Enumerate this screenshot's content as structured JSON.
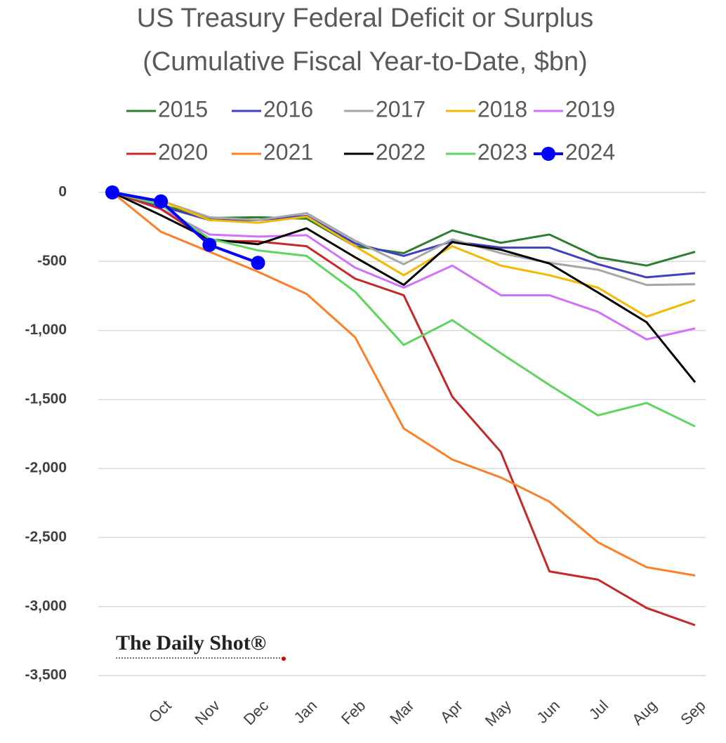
{
  "chart_data": {
    "type": "line",
    "title": "US Treasury Federal Deficit or Surplus",
    "subtitle": "(Cumulative Fiscal Year-to-Date, $bn)",
    "watermark": "The Daily Shot®",
    "categories": [
      null,
      "Oct",
      "Nov",
      "Dec",
      "Jan",
      "Feb",
      "Mar",
      "Apr",
      "May",
      "Jun",
      "Jul",
      "Aug",
      "Sep"
    ],
    "ylim": [
      -3500,
      0
    ],
    "yticks": [
      {
        "value": -3500,
        "label": "-3,500"
      },
      {
        "value": -3000,
        "label": "-3,000"
      },
      {
        "value": -2500,
        "label": "-2,500"
      },
      {
        "value": -2000,
        "label": "-2,000"
      },
      {
        "value": -1500,
        "label": "-1,500"
      },
      {
        "value": -1000,
        "label": "-1,000"
      },
      -500,
      0
    ],
    "grid": true,
    "series": [
      {
        "name": "2015",
        "color": "#2e7d32",
        "values": [
          0,
          -90,
          -185,
          -180,
          -190,
          -390,
          -440,
          -275,
          -365,
          -305,
          -470,
          -530,
          -430
        ]
      },
      {
        "name": "2016",
        "color": "#3f3fbf",
        "values": [
          0,
          -100,
          -200,
          -200,
          -170,
          -370,
          -460,
          -355,
          -400,
          -400,
          -520,
          -615,
          -585
        ]
      },
      {
        "name": "2017",
        "color": "#a6a6a6",
        "values": [
          0,
          -60,
          -180,
          -200,
          -150,
          -350,
          -520,
          -340,
          -440,
          -510,
          -560,
          -670,
          -665
        ]
      },
      {
        "name": "2018",
        "color": "#f5b800",
        "values": [
          0,
          -60,
          -200,
          -220,
          -175,
          -390,
          -600,
          -390,
          -530,
          -600,
          -690,
          -900,
          -780
        ]
      },
      {
        "name": "2019",
        "color": "#d070ff",
        "values": [
          0,
          -120,
          -305,
          -320,
          -310,
          -545,
          -690,
          -530,
          -745,
          -745,
          -865,
          -1065,
          -985
        ]
      },
      {
        "name": "2020",
        "color": "#c62828",
        "values": [
          0,
          -120,
          -350,
          -355,
          -390,
          -625,
          -745,
          -1480,
          -1880,
          -2745,
          -2805,
          -3010,
          -3135
        ]
      },
      {
        "name": "2021",
        "color": "#ff7f27",
        "values": [
          0,
          -285,
          -430,
          -575,
          -735,
          -1050,
          -1710,
          -1935,
          -2065,
          -2240,
          -2535,
          -2715,
          -2775
        ]
      },
      {
        "name": "2022",
        "color": "#000000",
        "values": [
          0,
          -165,
          -340,
          -375,
          -260,
          -470,
          -670,
          -360,
          -415,
          -515,
          -725,
          -940,
          -1375
        ]
      },
      {
        "name": "2023",
        "color": "#5cd65c",
        "values": [
          0,
          -90,
          -335,
          -420,
          -460,
          -720,
          -1105,
          -925,
          -1165,
          -1395,
          -1615,
          -1525,
          -1695
        ]
      },
      {
        "name": "2024",
        "color": "#0000ff",
        "marker": true,
        "values": [
          0,
          -65,
          -380,
          -510,
          null,
          null,
          null,
          null,
          null,
          null,
          null,
          null,
          null
        ]
      }
    ]
  }
}
